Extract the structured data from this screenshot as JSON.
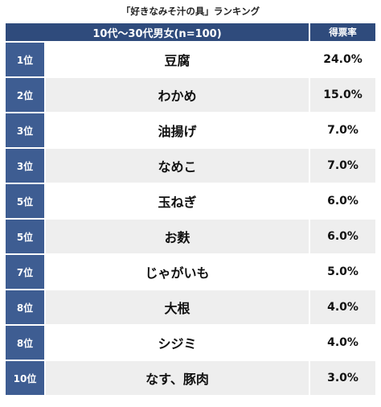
{
  "title": "「好きなみそ汁の具」ランキング",
  "header": {
    "group": "10代〜30代男女(n=100)",
    "score": "得票率"
  },
  "chart_data": {
    "type": "table",
    "title": "「好きなみそ汁の具」ランキング",
    "columns": [
      "",
      "10代〜30代男女(n=100)",
      "得票率"
    ],
    "rows": [
      {
        "rank": "1位",
        "item": "豆腐",
        "pct": "24.0%"
      },
      {
        "rank": "2位",
        "item": "わかめ",
        "pct": "15.0%"
      },
      {
        "rank": "3位",
        "item": "油揚げ",
        "pct": "7.0%"
      },
      {
        "rank": "3位",
        "item": "なめこ",
        "pct": "7.0%"
      },
      {
        "rank": "5位",
        "item": "玉ねぎ",
        "pct": "6.0%"
      },
      {
        "rank": "5位",
        "item": "お麩",
        "pct": "6.0%"
      },
      {
        "rank": "7位",
        "item": "じゃがいも",
        "pct": "5.0%"
      },
      {
        "rank": "8位",
        "item": "大根",
        "pct": "4.0%"
      },
      {
        "rank": "8位",
        "item": "シジミ",
        "pct": "4.0%"
      },
      {
        "rank": "10位",
        "item": "なす、豚肉",
        "pct": "3.0%"
      }
    ],
    "colors": {
      "header": "#2f4b7c",
      "rank_cell": "#3e5d92",
      "stripe": "#eeeeee"
    }
  }
}
